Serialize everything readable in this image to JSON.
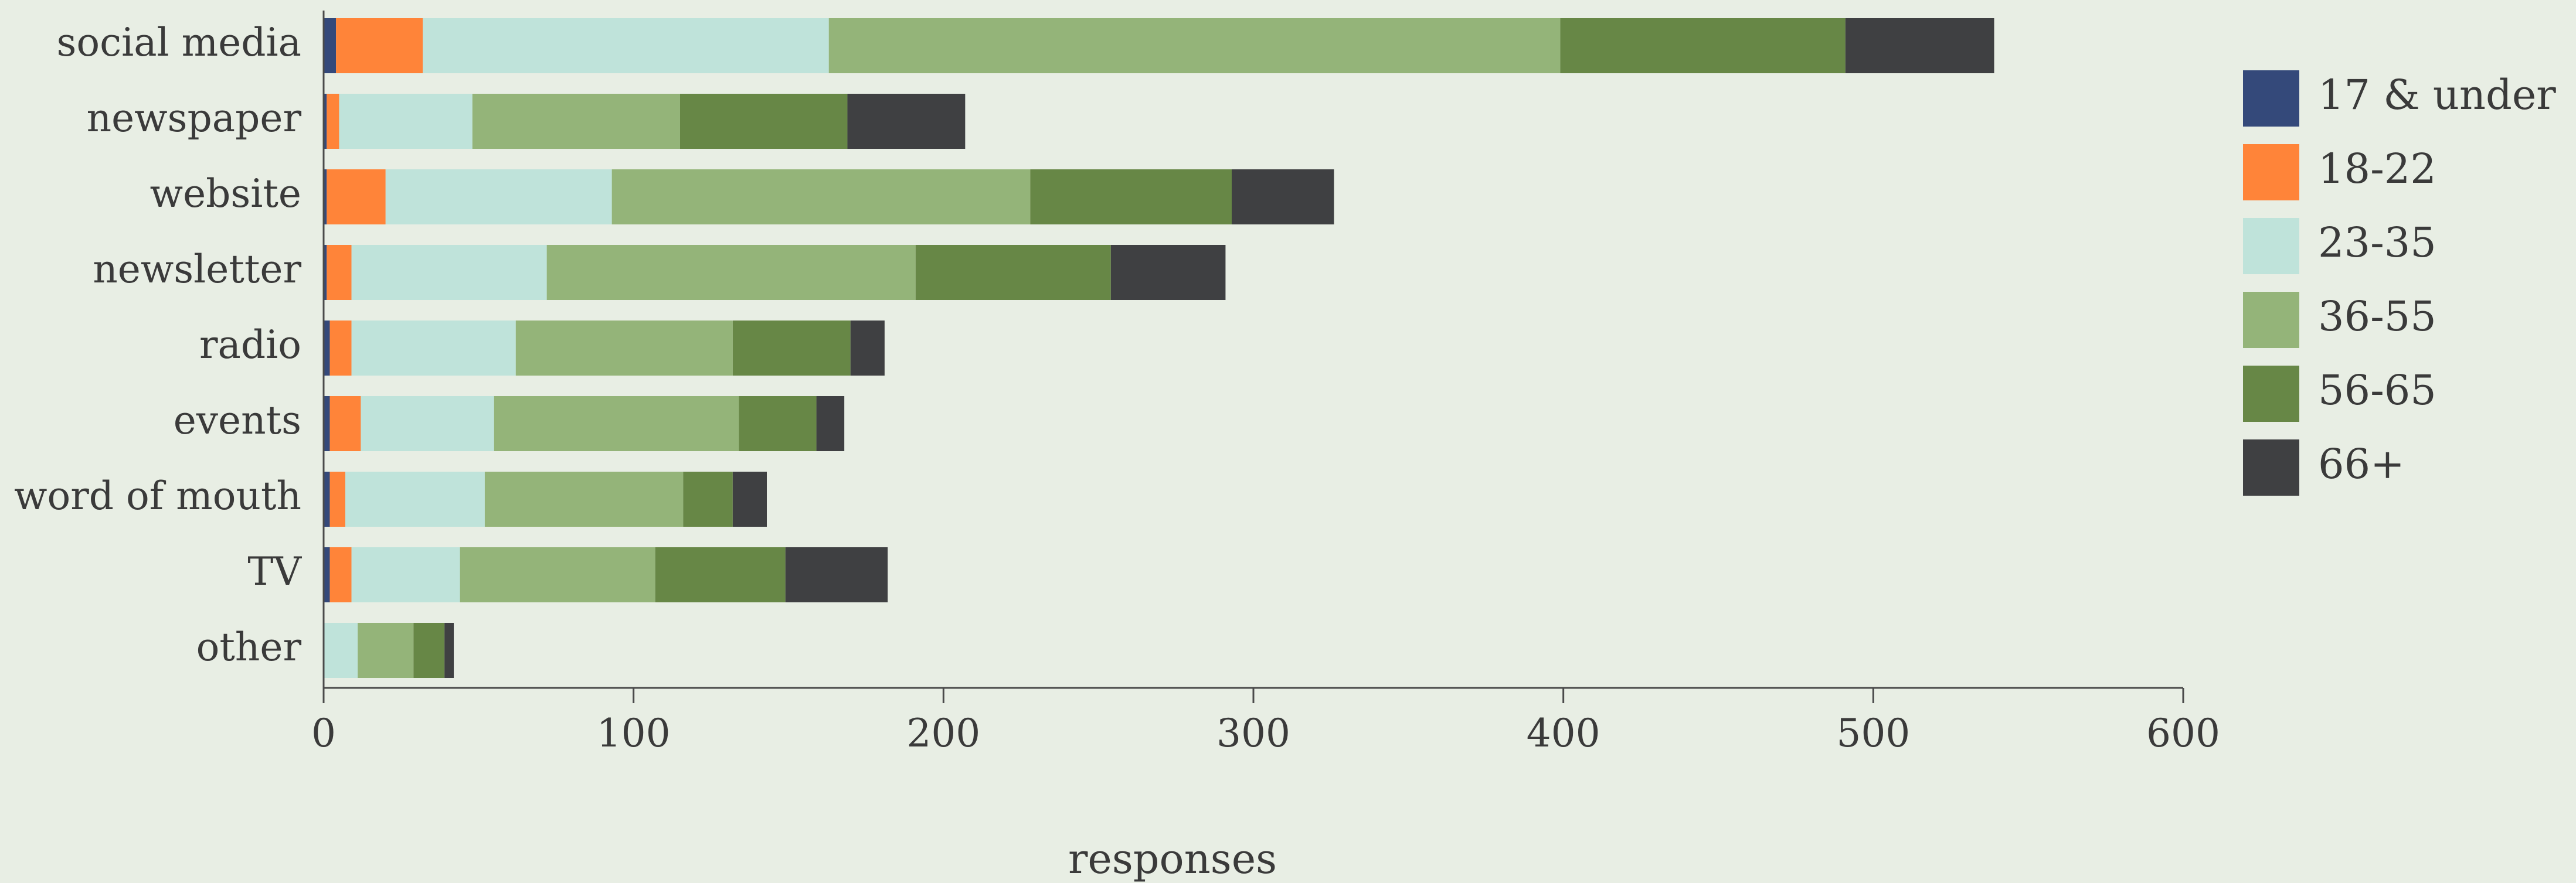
{
  "chart_data": {
    "type": "bar",
    "orientation": "horizontal",
    "stacked": true,
    "categories": [
      "social media",
      "newspaper",
      "website",
      "newsletter",
      "radio",
      "events",
      "word of mouth",
      "TV",
      "other"
    ],
    "series": [
      {
        "name": "17 & under",
        "color": "#34497a",
        "values": [
          4,
          1,
          1,
          1,
          2,
          2,
          2,
          2,
          0
        ]
      },
      {
        "name": "18-22",
        "color": "#ff8439",
        "values": [
          28,
          4,
          19,
          8,
          7,
          10,
          5,
          7,
          0
        ]
      },
      {
        "name": "23-35",
        "color": "#bfe3da",
        "values": [
          131,
          43,
          73,
          63,
          53,
          43,
          45,
          35,
          11
        ]
      },
      {
        "name": "36-55",
        "color": "#94b479",
        "values": [
          236,
          67,
          135,
          119,
          70,
          79,
          64,
          63,
          18
        ]
      },
      {
        "name": "56-65",
        "color": "#678746",
        "values": [
          92,
          54,
          65,
          63,
          38,
          25,
          16,
          42,
          10
        ]
      },
      {
        "name": "66+",
        "color": "#3f4042",
        "values": [
          48,
          38,
          33,
          37,
          11,
          9,
          11,
          33,
          3
        ]
      }
    ],
    "xlim": [
      0,
      600
    ],
    "xticks": [
      0,
      100,
      200,
      300,
      400,
      500,
      600
    ],
    "xlabel": "responses",
    "ylabel": "",
    "title": "",
    "legend_position": "right",
    "grid": false
  }
}
